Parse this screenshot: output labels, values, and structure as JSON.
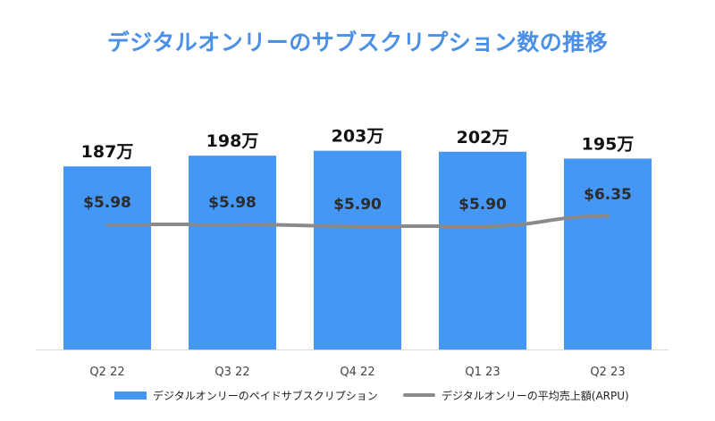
{
  "chart_data": {
    "type": "bar",
    "title": "デジタルオンリーのサブスクリプション数の推移",
    "categories": [
      "Q2 22",
      "Q3 22",
      "Q4 22",
      "Q1 23",
      "Q2 23"
    ],
    "series": [
      {
        "name": "デジタルオンリーのペイドサブスクリプション",
        "kind": "bar",
        "values": [
          187,
          198,
          203,
          202,
          195
        ],
        "unit": "万",
        "data_labels": [
          "187万",
          "198万",
          "203万",
          "202万",
          "195万"
        ]
      },
      {
        "name": "デジタルオンリーの平均売上額(ARPU)",
        "kind": "line",
        "values": [
          5.98,
          5.98,
          5.9,
          5.9,
          6.35
        ],
        "data_labels": [
          "$5.98",
          "$5.98",
          "$5.90",
          "$5.90",
          "$6.35"
        ]
      }
    ],
    "bar_axis_range": [
      0,
      210
    ],
    "line_axis_range": [
      0,
      10
    ],
    "xlabel": "",
    "ylabel": "",
    "legend_position": "bottom",
    "grid": false
  },
  "colors": {
    "bar": "#4597f5",
    "line": "#8a8a8a",
    "title": "#4a90e8",
    "label_dark": "#2c2c2c",
    "axis": "#d9d9d9"
  }
}
